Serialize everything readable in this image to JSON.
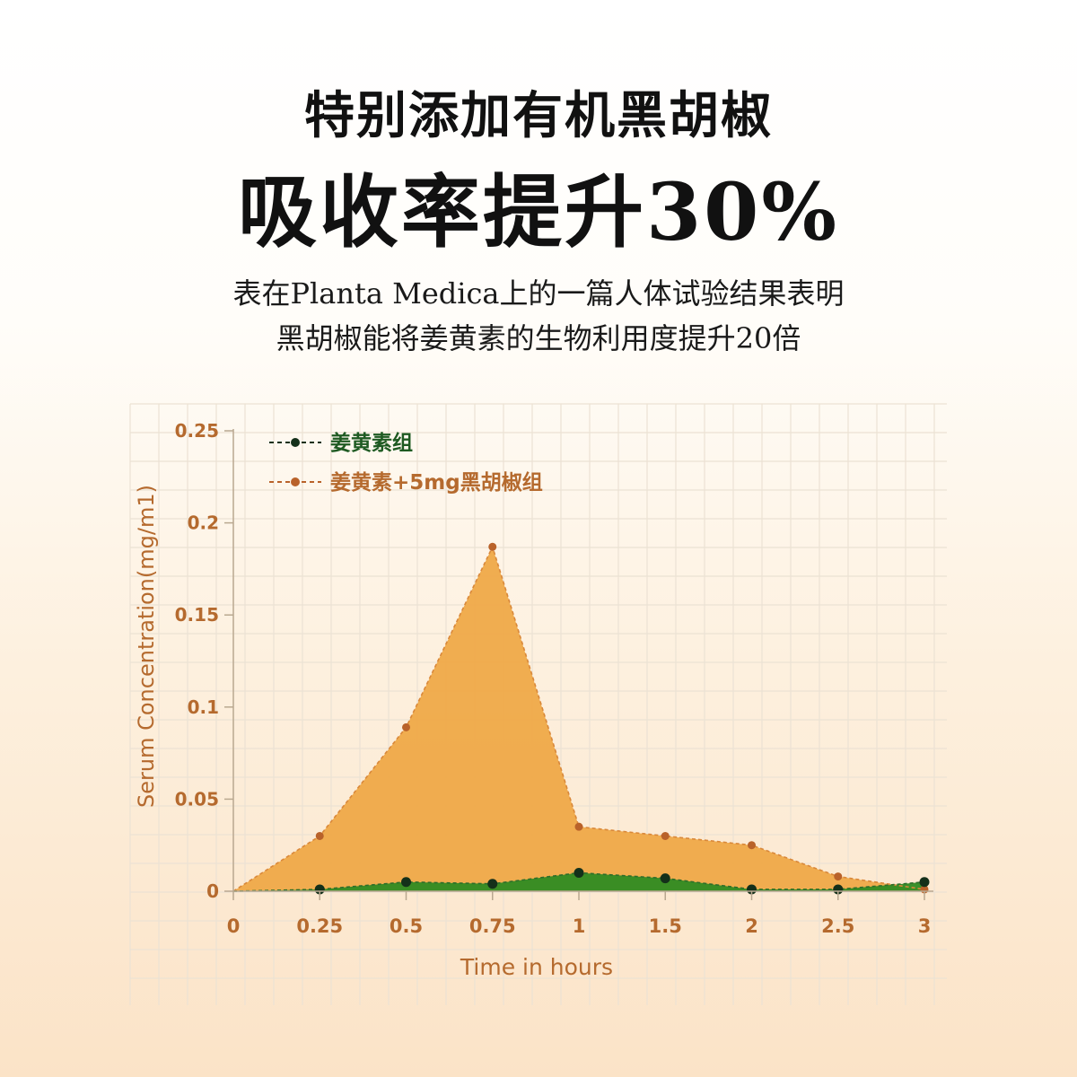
{
  "header": {
    "title": "特别添加有机黑胡椒",
    "headline": "吸收率提升30%",
    "subtitle_line1": "表在Planta Medica上的一篇人体试验结果表明",
    "subtitle_line2": "黑胡椒能将姜黄素的生物利用度提升20倍"
  },
  "colors": {
    "orange_fill": "#efa948",
    "orange_line": "#d9883a",
    "orange_point": "#b9622a",
    "green_fill": "#2f8b22",
    "green_line": "#2e6e2a",
    "green_point": "#14301a",
    "axis_text": "#b56a2e",
    "grid": "#ece2d4"
  },
  "chart_data": {
    "type": "area",
    "xlabel": "Time in hours",
    "ylabel": "Serum Concentration(mg/m1)",
    "x": [
      "0",
      "0.25",
      "0.5",
      "0.75",
      "1",
      "1.5",
      "2",
      "2.5",
      "3"
    ],
    "ylim": [
      0,
      0.25
    ],
    "yticks": [
      "0",
      "0.05",
      "0.1",
      "0.15",
      "0.2",
      "0.25"
    ],
    "grid": true,
    "legend_position": "top-left",
    "series": [
      {
        "name": "姜黄素组",
        "values": [
          0,
          0.001,
          0.005,
          0.004,
          0.01,
          0.007,
          0.001,
          0.001,
          0.005
        ]
      },
      {
        "name": "姜黄素+5mg黑胡椒组",
        "values": [
          0,
          0.03,
          0.089,
          0.187,
          0.035,
          0.03,
          0.025,
          0.008,
          0.001
        ]
      }
    ]
  }
}
